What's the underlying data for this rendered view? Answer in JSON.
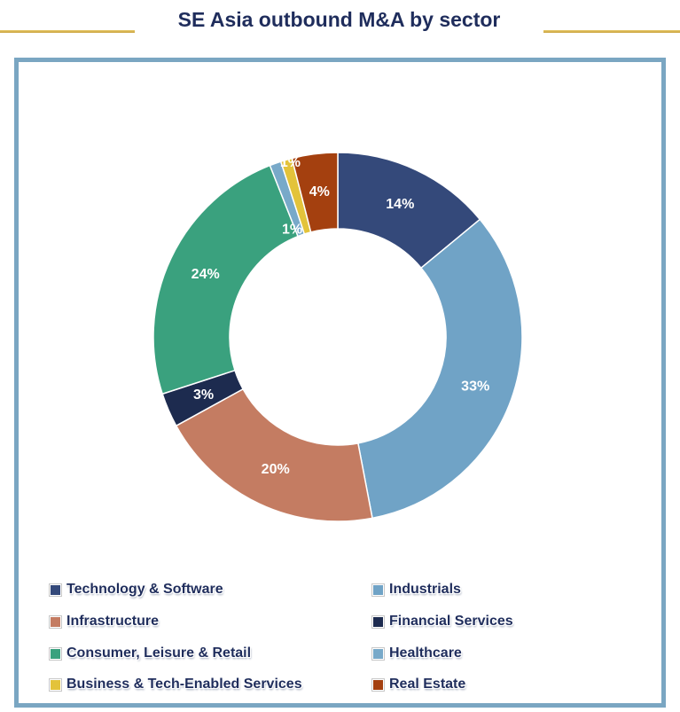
{
  "chart_data": {
    "type": "pie",
    "variant": "donut",
    "title": "SE Asia outbound M&A by sector",
    "legend_position": "bottom",
    "slices": [
      {
        "name": "Technology & Software",
        "value": 14,
        "label": "14%",
        "color": "#34497a"
      },
      {
        "name": "Industrials",
        "value": 33,
        "label": "33%",
        "color": "#70a3c6"
      },
      {
        "name": "Infrastructure",
        "value": 20,
        "label": "20%",
        "color": "#c47c62"
      },
      {
        "name": "Financial Services",
        "value": 3,
        "label": "3%",
        "color": "#1d2b4f"
      },
      {
        "name": "Consumer, Leisure & Retail",
        "value": 24,
        "label": "24%",
        "color": "#3aa17e"
      },
      {
        "name": "Healthcare",
        "value": 1,
        "label": "1%",
        "color": "#78a9c9"
      },
      {
        "name": "Business & Tech-Enabled Services",
        "value": 1,
        "label": "1%",
        "color": "#e3c33a"
      },
      {
        "name": "Real Estate",
        "value": 4,
        "label": "4%",
        "color": "#a4400f"
      }
    ]
  }
}
